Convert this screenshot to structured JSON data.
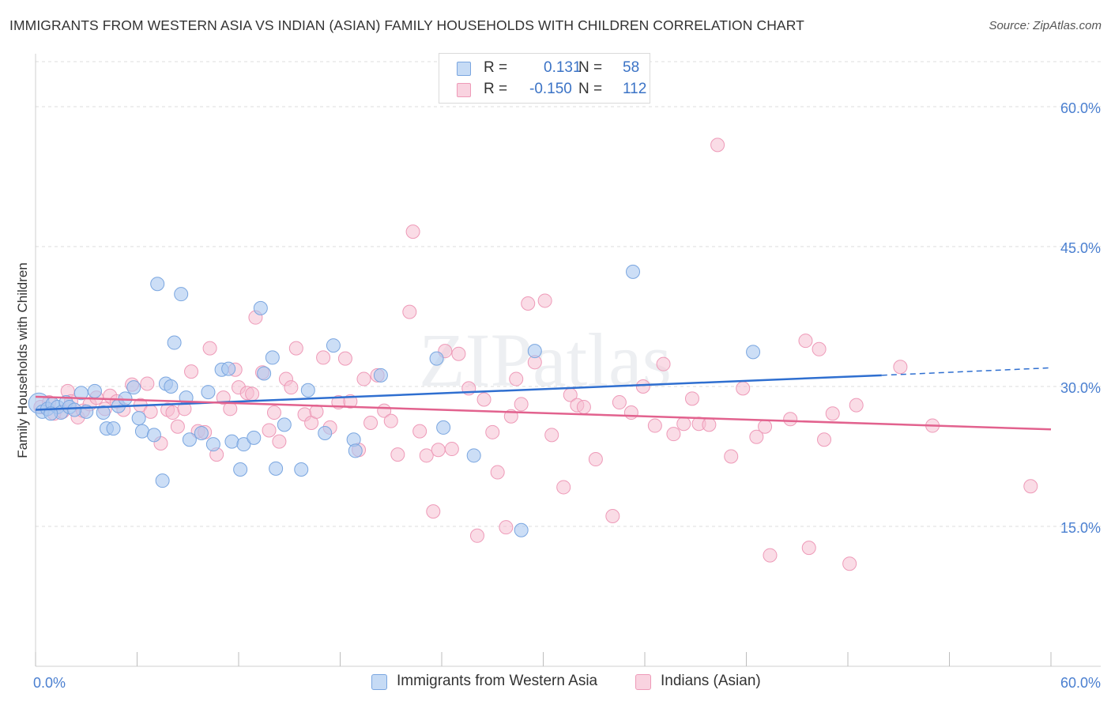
{
  "header": {
    "title": "IMMIGRANTS FROM WESTERN ASIA VS INDIAN (ASIAN) FAMILY HOUSEHOLDS WITH CHILDREN CORRELATION CHART",
    "source": "Source: ZipAtlas.com"
  },
  "legend": {
    "r_label": "R =",
    "n_label": "N =",
    "series1": {
      "r": "0.131",
      "n": "58"
    },
    "series2": {
      "r": "-0.150",
      "n": "112"
    }
  },
  "watermark": "ZIPatlas",
  "colors": {
    "blue_fill": "#aac8f0",
    "blue_stroke": "#7aa6e0",
    "blue_line": "#2f6fd0",
    "pink_fill": "#f6c0d2",
    "pink_stroke": "#ee9ab8",
    "pink_line": "#e2628e",
    "axis_text": "#4a7fd0"
  },
  "chart_data": {
    "type": "scatter",
    "ylabel": "Family Households with Children",
    "xlim": [
      0,
      60
    ],
    "ylim": [
      0,
      65
    ],
    "x_tick_labels": [
      "0.0%",
      "60.0%"
    ],
    "y_ticks": [
      15,
      30,
      45,
      60
    ],
    "y_tick_labels": [
      "15.0%",
      "30.0%",
      "45.0%",
      "60.0%"
    ],
    "grid": "horizontal dashed",
    "series": [
      {
        "name": "Immigrants from Western Asia",
        "color": "#aac8f0",
        "trend": {
          "x": [
            0,
            50
          ],
          "y": [
            27.5,
            31.2
          ],
          "dashed_to": [
            60,
            32.0
          ]
        },
        "points": [
          [
            0.2,
            28.2
          ],
          [
            0.4,
            27.3
          ],
          [
            0.7,
            27.6
          ],
          [
            1.0,
            28.1
          ],
          [
            1.3,
            27.8
          ],
          [
            1.5,
            27.2
          ],
          [
            1.8,
            28.3
          ],
          [
            2.0,
            27.8
          ],
          [
            2.7,
            29.3
          ],
          [
            3.0,
            27.3
          ],
          [
            3.5,
            29.5
          ],
          [
            4.0,
            27.2
          ],
          [
            4.2,
            25.5
          ],
          [
            4.6,
            25.5
          ],
          [
            4.9,
            27.9
          ],
          [
            5.3,
            28.7
          ],
          [
            5.8,
            29.9
          ],
          [
            6.1,
            26.6
          ],
          [
            6.3,
            25.2
          ],
          [
            7.0,
            24.8
          ],
          [
            7.2,
            41.0
          ],
          [
            7.5,
            19.9
          ],
          [
            7.7,
            30.3
          ],
          [
            8.0,
            30.0
          ],
          [
            8.2,
            34.7
          ],
          [
            8.6,
            39.9
          ],
          [
            8.9,
            28.8
          ],
          [
            9.1,
            24.3
          ],
          [
            9.8,
            25.0
          ],
          [
            10.2,
            29.4
          ],
          [
            10.5,
            23.8
          ],
          [
            11.0,
            31.8
          ],
          [
            11.4,
            31.9
          ],
          [
            11.6,
            24.1
          ],
          [
            12.1,
            21.1
          ],
          [
            12.3,
            23.8
          ],
          [
            12.9,
            24.5
          ],
          [
            13.3,
            38.4
          ],
          [
            13.5,
            31.4
          ],
          [
            14.0,
            33.1
          ],
          [
            14.2,
            21.2
          ],
          [
            14.7,
            25.9
          ],
          [
            15.7,
            21.1
          ],
          [
            16.1,
            29.6
          ],
          [
            17.1,
            25.0
          ],
          [
            17.6,
            34.4
          ],
          [
            18.8,
            24.3
          ],
          [
            18.9,
            23.1
          ],
          [
            20.4,
            31.2
          ],
          [
            23.7,
            33.0
          ],
          [
            24.1,
            25.6
          ],
          [
            25.9,
            22.6
          ],
          [
            28.7,
            14.6
          ],
          [
            29.5,
            33.8
          ],
          [
            35.3,
            42.3
          ],
          [
            42.4,
            33.7
          ],
          [
            2.3,
            27.5
          ],
          [
            0.9,
            27.1
          ]
        ]
      },
      {
        "name": "Indians (Asian)",
        "color": "#f6c0d2",
        "trend": {
          "x": [
            0,
            60
          ],
          "y": [
            28.9,
            25.4
          ]
        },
        "points": [
          [
            0.3,
            27.8
          ],
          [
            0.8,
            28.3
          ],
          [
            1.1,
            27.1
          ],
          [
            1.6,
            27.3
          ],
          [
            1.9,
            29.5
          ],
          [
            2.1,
            28.4
          ],
          [
            2.5,
            26.7
          ],
          [
            2.8,
            27.4
          ],
          [
            3.2,
            28.1
          ],
          [
            3.6,
            28.8
          ],
          [
            4.1,
            27.6
          ],
          [
            4.4,
            29.0
          ],
          [
            4.8,
            28.4
          ],
          [
            5.2,
            27.5
          ],
          [
            5.7,
            30.2
          ],
          [
            6.2,
            28.0
          ],
          [
            6.6,
            30.3
          ],
          [
            6.8,
            27.3
          ],
          [
            7.4,
            23.9
          ],
          [
            7.8,
            27.5
          ],
          [
            8.1,
            27.2
          ],
          [
            8.4,
            25.7
          ],
          [
            8.8,
            27.6
          ],
          [
            9.2,
            31.6
          ],
          [
            9.6,
            25.2
          ],
          [
            10.0,
            25.1
          ],
          [
            10.3,
            34.1
          ],
          [
            10.7,
            22.7
          ],
          [
            11.1,
            28.8
          ],
          [
            11.5,
            27.6
          ],
          [
            11.8,
            31.8
          ],
          [
            12.0,
            29.9
          ],
          [
            12.5,
            29.3
          ],
          [
            12.8,
            29.2
          ],
          [
            13.0,
            37.4
          ],
          [
            13.4,
            31.5
          ],
          [
            13.8,
            25.3
          ],
          [
            14.1,
            27.2
          ],
          [
            14.4,
            24.1
          ],
          [
            14.8,
            30.8
          ],
          [
            15.1,
            29.9
          ],
          [
            15.4,
            34.1
          ],
          [
            15.9,
            27.0
          ],
          [
            16.3,
            26.1
          ],
          [
            16.6,
            27.3
          ],
          [
            17.0,
            33.1
          ],
          [
            17.4,
            25.6
          ],
          [
            17.9,
            28.3
          ],
          [
            18.3,
            33.0
          ],
          [
            18.6,
            28.4
          ],
          [
            19.1,
            23.2
          ],
          [
            19.4,
            30.8
          ],
          [
            19.8,
            26.1
          ],
          [
            20.2,
            31.2
          ],
          [
            20.6,
            27.4
          ],
          [
            21.0,
            26.3
          ],
          [
            21.4,
            22.7
          ],
          [
            22.1,
            38.0
          ],
          [
            22.3,
            46.6
          ],
          [
            22.7,
            25.2
          ],
          [
            23.1,
            22.6
          ],
          [
            23.5,
            16.6
          ],
          [
            23.8,
            23.2
          ],
          [
            24.2,
            33.8
          ],
          [
            24.6,
            23.3
          ],
          [
            25.0,
            33.5
          ],
          [
            25.6,
            29.8
          ],
          [
            26.1,
            14.0
          ],
          [
            26.5,
            28.6
          ],
          [
            27.0,
            25.1
          ],
          [
            27.3,
            20.8
          ],
          [
            27.8,
            14.9
          ],
          [
            28.1,
            26.8
          ],
          [
            28.4,
            30.8
          ],
          [
            28.7,
            28.1
          ],
          [
            29.1,
            38.9
          ],
          [
            29.5,
            32.6
          ],
          [
            30.1,
            39.2
          ],
          [
            30.5,
            24.8
          ],
          [
            31.2,
            19.2
          ],
          [
            31.6,
            29.1
          ],
          [
            32.0,
            28.0
          ],
          [
            32.4,
            27.8
          ],
          [
            33.1,
            22.2
          ],
          [
            34.1,
            16.1
          ],
          [
            34.5,
            28.3
          ],
          [
            35.2,
            27.2
          ],
          [
            35.9,
            30.0
          ],
          [
            36.6,
            25.8
          ],
          [
            37.1,
            32.4
          ],
          [
            37.7,
            24.9
          ],
          [
            38.3,
            26.0
          ],
          [
            38.8,
            28.7
          ],
          [
            39.2,
            26.0
          ],
          [
            39.8,
            25.9
          ],
          [
            40.3,
            55.9
          ],
          [
            41.1,
            22.5
          ],
          [
            41.8,
            29.8
          ],
          [
            42.6,
            24.6
          ],
          [
            43.1,
            25.7
          ],
          [
            43.4,
            11.9
          ],
          [
            44.6,
            26.5
          ],
          [
            45.5,
            34.9
          ],
          [
            45.7,
            12.7
          ],
          [
            46.3,
            34.0
          ],
          [
            46.6,
            24.3
          ],
          [
            47.1,
            27.1
          ],
          [
            48.1,
            11.0
          ],
          [
            48.5,
            28.0
          ],
          [
            51.1,
            32.1
          ],
          [
            53.0,
            25.8
          ],
          [
            58.8,
            19.3
          ]
        ]
      }
    ]
  }
}
